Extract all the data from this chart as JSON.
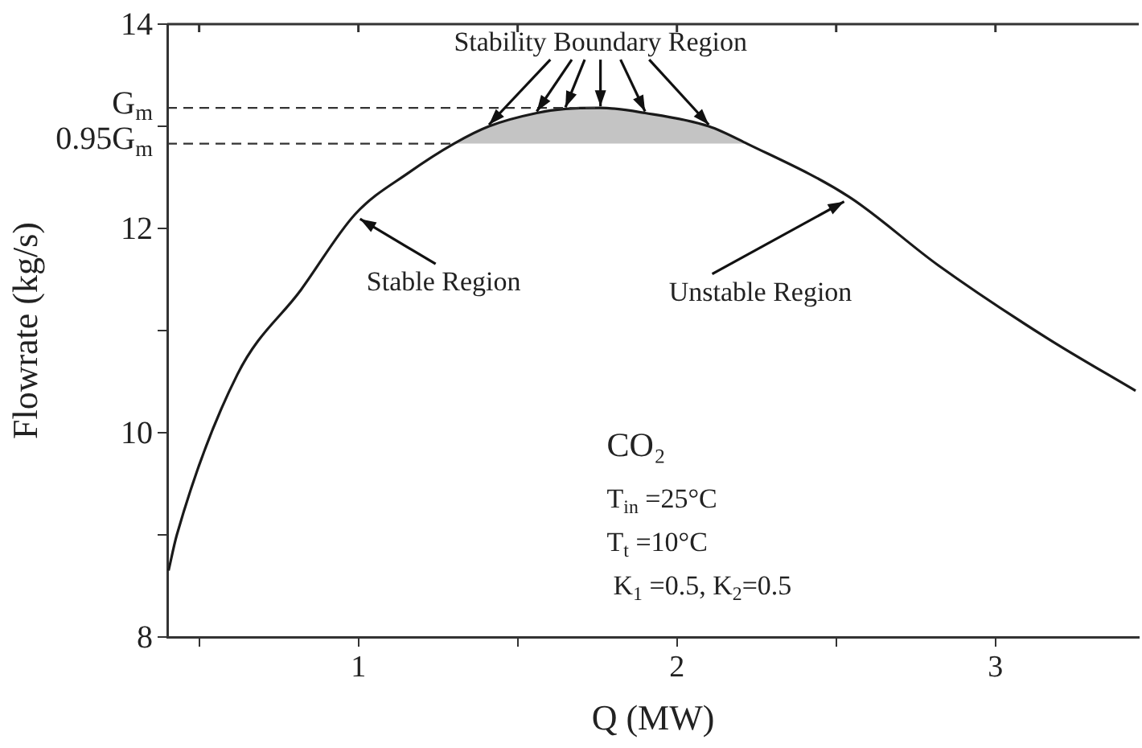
{
  "chart_data": {
    "type": "line",
    "xlabel": "Q (MW)",
    "ylabel": "Flowrate (kg/s)",
    "xlim": [
      0.4,
      3.45
    ],
    "xticks": [
      {
        "value": 0.5,
        "label": null
      },
      1,
      {
        "value": 1.5,
        "label": null
      },
      2,
      {
        "value": 2.5,
        "label": null
      },
      3
    ],
    "ylim": [
      8,
      14
    ],
    "yticks": [
      8,
      {
        "value": 9,
        "label": null
      },
      10,
      {
        "value": 11,
        "label": null
      },
      12,
      {
        "value": 13,
        "label": null
      },
      14
    ],
    "grid": false,
    "legend": false,
    "marker": "none",
    "line_style": "solid",
    "series": [
      {
        "color": "#1a1a1a",
        "x": [
          0.404,
          0.43,
          0.62,
          0.82,
          0.99,
          1.16,
          1.3,
          1.41,
          1.56,
          1.65,
          1.76,
          1.9,
          2.1,
          2.22,
          2.54,
          2.82,
          3.16,
          3.44
        ],
        "values": [
          8.65,
          9.0,
          10.57,
          11.4,
          12.14,
          12.55,
          12.83,
          13.0,
          13.13,
          13.17,
          13.18,
          13.13,
          13.0,
          12.83,
          12.31,
          11.64,
          10.93,
          10.41
        ],
        "lower": [
          null,
          null,
          null,
          null,
          null,
          null,
          12.83,
          12.83,
          12.83,
          12.83,
          12.83,
          12.83,
          12.83,
          12.83,
          null,
          null,
          null,
          null
        ],
        "upper": [
          null,
          null,
          null,
          null,
          null,
          null,
          12.83,
          13.0,
          13.13,
          13.17,
          13.18,
          13.13,
          13.0,
          12.83,
          null,
          null,
          null,
          null
        ]
      }
    ],
    "ref_lines": [
      {
        "axis": "y",
        "value": 13.18,
        "label": "G$_{m}$",
        "line_style": "dashed",
        "color": "#333333"
      },
      {
        "axis": "y",
        "value": 12.83,
        "label": "0.95G$_{m}$",
        "line_style": "dashed",
        "color": "#333333"
      }
    ],
    "annotations": [
      {
        "text": "Stability Boundary Region",
        "x": 1.76,
        "y": 13.18
      },
      {
        "text": "Stable Region",
        "x": 0.99,
        "y": 12.14
      },
      {
        "text": "Unstable Region",
        "x": 2.54,
        "y": 12.31
      },
      "CO₂",
      "T$_{in}$ =25°C",
      "T$_{t}$ =10°C",
      "K$_{1}$ =0.5, K$_{2}$=0.5"
    ]
  }
}
